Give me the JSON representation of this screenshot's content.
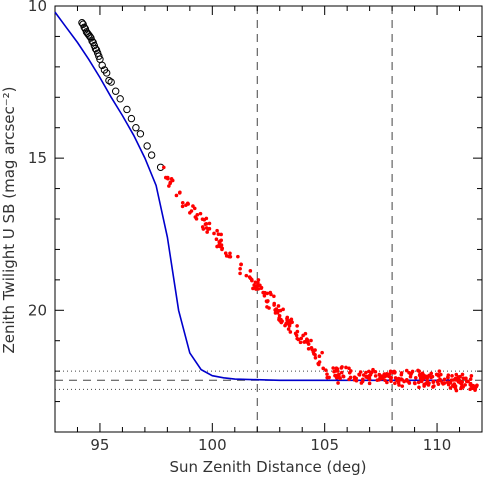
{
  "chart_data": {
    "type": "scatter",
    "xlabel": "Sun Zenith Distance (deg)",
    "ylabel": "Zenith Twilight U SB (mag arcsec⁻²)",
    "xlim": [
      93,
      112
    ],
    "ylim": [
      10,
      24
    ],
    "y_inverted": true,
    "x_ticks": [
      95,
      100,
      105,
      110
    ],
    "y_ticks": [
      10,
      15,
      20
    ],
    "grid": false,
    "legend": "none",
    "colors": {
      "open_markers": "#000000",
      "filled_markers": "#ff0000",
      "model_line": "#0000cc",
      "reference_lines": "#444444"
    },
    "vertical_dashed_lines_x": [
      102,
      108
    ],
    "horizontal_dashed_line_y": 22.3,
    "horizontal_dotted_lines_y": [
      22.0,
      22.6
    ],
    "model_curve": {
      "x": [
        93.0,
        93.5,
        94.0,
        94.5,
        95.0,
        95.5,
        96.0,
        96.5,
        97.0,
        97.5,
        98.0,
        98.5,
        99.0,
        99.5,
        100.0,
        100.5,
        101.0,
        102.0,
        103.0,
        104.0,
        105.0,
        106.0,
        107.0,
        108.0,
        109.0,
        110.0,
        111.0
      ],
      "y": [
        10.2,
        10.7,
        11.2,
        11.75,
        12.35,
        13.0,
        13.6,
        14.25,
        15.0,
        15.9,
        17.6,
        20.0,
        21.4,
        21.95,
        22.15,
        22.22,
        22.26,
        22.28,
        22.3,
        22.3,
        22.3,
        22.3,
        22.3,
        22.3,
        22.3,
        22.3,
        22.3
      ]
    },
    "open_points": {
      "x": [
        94.2,
        94.25,
        94.3,
        94.35,
        94.4,
        94.45,
        94.5,
        94.55,
        94.6,
        94.65,
        94.7,
        94.75,
        94.8,
        94.85,
        94.9,
        94.95,
        95.0,
        95.1,
        95.2,
        95.3,
        95.4,
        95.5,
        95.7,
        95.9,
        96.2,
        96.4,
        96.6,
        96.8,
        97.1,
        97.3,
        97.7
      ],
      "y": [
        10.55,
        10.6,
        10.7,
        10.75,
        10.85,
        10.9,
        10.95,
        11.0,
        11.05,
        11.15,
        11.2,
        11.3,
        11.4,
        11.45,
        11.55,
        11.65,
        11.75,
        11.95,
        12.1,
        12.2,
        12.45,
        12.5,
        12.8,
        13.05,
        13.4,
        13.7,
        14.0,
        14.2,
        14.6,
        14.9,
        15.3
      ]
    }
  }
}
